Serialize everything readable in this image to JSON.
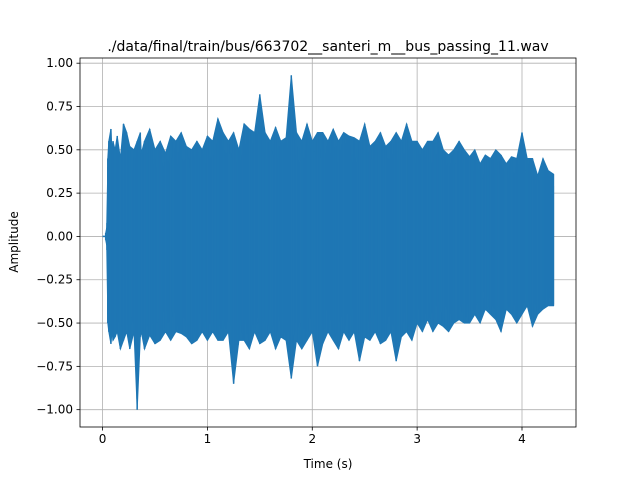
{
  "chart_data": {
    "type": "line",
    "title": "./data/final/train/bus/663702__santeri_m__bus_passing_11.wav",
    "xlabel": "Time (s)",
    "ylabel": "Amplitude",
    "xlim": [
      -0.215,
      4.515
    ],
    "ylim": [
      -1.1,
      1.03
    ],
    "xticks": [
      0,
      1,
      2,
      3,
      4
    ],
    "xtick_labels": [
      "0",
      "1",
      "2",
      "3",
      "4"
    ],
    "yticks": [
      -1.0,
      -0.75,
      -0.5,
      -0.25,
      0.0,
      0.25,
      0.5,
      0.75,
      1.0
    ],
    "ytick_labels": [
      "−1.00",
      "−0.75",
      "−0.50",
      "−0.25",
      "0.00",
      "0.25",
      "0.50",
      "0.75",
      "1.00"
    ],
    "grid": true,
    "series": [
      {
        "color": "#1f77b4",
        "x": [
          0.0,
          0.01,
          0.03,
          0.03,
          0.04,
          0.05,
          0.05,
          0.06,
          0.08,
          0.09,
          0.1,
          0.12,
          0.14,
          0.17,
          0.2,
          0.23,
          0.26,
          0.3,
          0.33,
          0.36,
          0.37,
          0.4,
          0.45,
          0.5,
          0.55,
          0.6,
          0.65,
          0.7,
          0.75,
          0.8,
          0.85,
          0.9,
          0.95,
          1.0,
          1.05,
          1.1,
          1.15,
          1.2,
          1.25,
          1.3,
          1.35,
          1.4,
          1.45,
          1.5,
          1.55,
          1.6,
          1.65,
          1.7,
          1.75,
          1.8,
          1.85,
          1.9,
          1.95,
          2.0,
          2.05,
          2.1,
          2.15,
          2.2,
          2.25,
          2.3,
          2.35,
          2.4,
          2.45,
          2.5,
          2.55,
          2.6,
          2.65,
          2.7,
          2.75,
          2.8,
          2.85,
          2.9,
          2.95,
          3.0,
          3.05,
          3.1,
          3.15,
          3.2,
          3.25,
          3.3,
          3.35,
          3.4,
          3.45,
          3.5,
          3.55,
          3.6,
          3.65,
          3.7,
          3.75,
          3.8,
          3.85,
          3.9,
          3.95,
          4.0,
          4.05,
          4.1,
          4.15,
          4.2,
          4.25,
          4.3
        ],
        "max": [
          0.0,
          0.0,
          0.0,
          0.02,
          0.05,
          0.4,
          0.45,
          0.55,
          0.62,
          0.5,
          0.55,
          0.5,
          0.58,
          0.45,
          0.65,
          0.6,
          0.52,
          0.5,
          0.55,
          0.6,
          0.48,
          0.55,
          0.62,
          0.5,
          0.55,
          0.48,
          0.58,
          0.55,
          0.6,
          0.52,
          0.5,
          0.55,
          0.5,
          0.58,
          0.55,
          0.68,
          0.6,
          0.55,
          0.6,
          0.5,
          0.65,
          0.62,
          0.6,
          0.82,
          0.6,
          0.55,
          0.63,
          0.55,
          0.57,
          0.93,
          0.6,
          0.55,
          0.65,
          0.55,
          0.6,
          0.6,
          0.55,
          0.62,
          0.55,
          0.6,
          0.58,
          0.57,
          0.55,
          0.65,
          0.52,
          0.55,
          0.6,
          0.52,
          0.55,
          0.6,
          0.55,
          0.65,
          0.55,
          0.55,
          0.5,
          0.55,
          0.55,
          0.6,
          0.5,
          0.47,
          0.5,
          0.55,
          0.5,
          0.46,
          0.5,
          0.42,
          0.47,
          0.45,
          0.5,
          0.47,
          0.42,
          0.46,
          0.45,
          0.6,
          0.45,
          0.45,
          0.35,
          0.45,
          0.38,
          0.36
        ],
        "min": [
          0.0,
          0.0,
          0.0,
          -0.02,
          -0.05,
          -0.45,
          -0.5,
          -0.55,
          -0.62,
          -0.55,
          -0.6,
          -0.58,
          -0.55,
          -0.65,
          -0.6,
          -0.55,
          -0.65,
          -0.55,
          -1.0,
          -0.58,
          -0.55,
          -0.65,
          -0.57,
          -0.62,
          -0.6,
          -0.55,
          -0.6,
          -0.55,
          -0.56,
          -0.58,
          -0.62,
          -0.6,
          -0.55,
          -0.6,
          -0.55,
          -0.6,
          -0.6,
          -0.55,
          -0.85,
          -0.6,
          -0.6,
          -0.65,
          -0.55,
          -0.62,
          -0.6,
          -0.55,
          -0.65,
          -0.58,
          -0.6,
          -0.82,
          -0.6,
          -0.65,
          -0.6,
          -0.55,
          -0.75,
          -0.62,
          -0.55,
          -0.6,
          -0.65,
          -0.55,
          -0.6,
          -0.55,
          -0.72,
          -0.58,
          -0.6,
          -0.55,
          -0.62,
          -0.6,
          -0.55,
          -0.72,
          -0.58,
          -0.55,
          -0.6,
          -0.5,
          -0.55,
          -0.48,
          -0.55,
          -0.5,
          -0.52,
          -0.55,
          -0.5,
          -0.48,
          -0.5,
          -0.5,
          -0.45,
          -0.5,
          -0.42,
          -0.45,
          -0.48,
          -0.55,
          -0.42,
          -0.45,
          -0.5,
          -0.45,
          -0.4,
          -0.52,
          -0.45,
          -0.42,
          -0.4,
          -0.4
        ]
      }
    ]
  }
}
